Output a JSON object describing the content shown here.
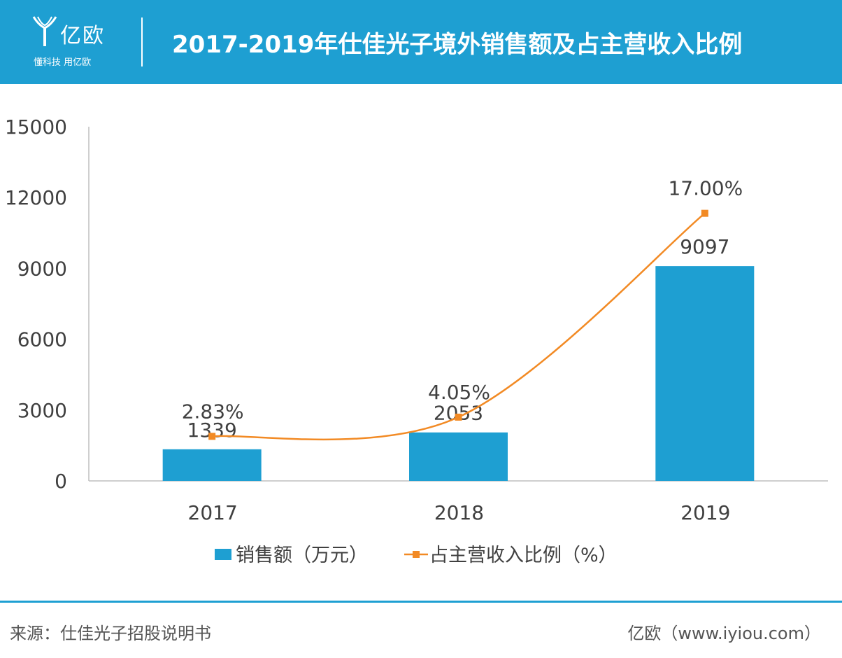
{
  "header": {
    "logo_name": "亿欧",
    "logo_slogan": "懂科技 用亿欧",
    "title": "2017-2019年仕佳光子境外销售额及占主营收入比例"
  },
  "colors": {
    "header_bg": "#1e9fd2",
    "bar": "#1e9fd2",
    "line": "#f28a24",
    "axis": "#bfbfbf",
    "text": "#404040"
  },
  "chart_data": {
    "type": "bar",
    "categories": [
      "2017",
      "2018",
      "2019"
    ],
    "ylim": [
      0,
      15000
    ],
    "yticks": [
      "0",
      "3000",
      "6000",
      "9000",
      "12000",
      "15000"
    ],
    "grid": false,
    "legend_position": "bottom",
    "series": [
      {
        "name": "销售额（万元）",
        "type": "bar",
        "values": [
          1339,
          2053,
          9097
        ],
        "labels": [
          "1339",
          "2053",
          "9097"
        ]
      },
      {
        "name": "占主营收入比例（%）",
        "type": "line",
        "values": [
          2.83,
          4.05,
          17.0
        ],
        "labels": [
          "2.83%",
          "4.05%",
          "17.00%"
        ]
      }
    ]
  },
  "footer": {
    "source": "来源：仕佳光子招股说明书",
    "credit": "亿欧（www.iyiou.com）"
  }
}
